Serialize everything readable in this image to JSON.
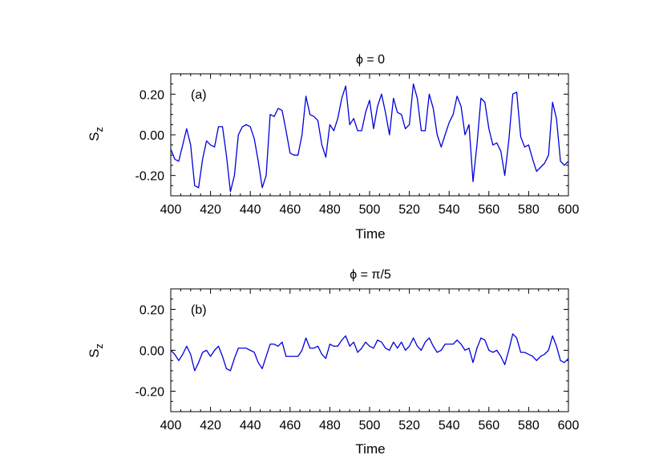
{
  "colors": {
    "series": "#0000dd",
    "axis": "#000000",
    "background": "#ffffff"
  },
  "chart_data": [
    {
      "type": "line",
      "title": "ϕ = 0",
      "panel_label": "(a)",
      "xlabel": "Time",
      "ylabel": "S",
      "ylabel_sub": "z",
      "xlim": [
        400,
        600
      ],
      "ylim": [
        -0.3,
        0.3
      ],
      "xticks": [
        400,
        420,
        440,
        460,
        480,
        500,
        520,
        540,
        560,
        580,
        600
      ],
      "xtick_labels": [
        "400",
        "420",
        "440",
        "460",
        "480",
        "500",
        "520",
        "540",
        "560",
        "580",
        "600"
      ],
      "yticks": [
        -0.2,
        0.0,
        0.2
      ],
      "ytick_labels": [
        "-0.20",
        "0.00",
        "0.20"
      ],
      "grid": false,
      "series": [
        {
          "x": [
            400,
            402,
            404,
            406,
            408,
            410,
            412,
            414,
            416,
            418,
            420,
            422,
            424,
            426,
            428,
            430,
            432,
            434,
            436,
            438,
            440,
            442,
            444,
            446,
            448,
            450,
            452,
            454,
            456,
            458,
            460,
            462,
            464,
            466,
            468,
            470,
            472,
            474,
            476,
            478,
            480,
            482,
            484,
            486,
            488,
            490,
            492,
            494,
            496,
            498,
            500,
            502,
            504,
            506,
            508,
            510,
            512,
            514,
            516,
            518,
            520,
            522,
            524,
            526,
            528,
            530,
            532,
            534,
            536,
            538,
            540,
            542,
            544,
            546,
            548,
            550,
            552,
            554,
            556,
            558,
            560,
            562,
            564,
            566,
            568,
            570,
            572,
            574,
            576,
            578,
            580,
            582,
            584,
            586,
            588,
            590,
            592,
            594,
            596,
            598,
            600
          ],
          "y": [
            -0.07,
            -0.12,
            -0.13,
            -0.05,
            0.03,
            -0.05,
            -0.25,
            -0.26,
            -0.12,
            -0.03,
            -0.05,
            -0.06,
            0.04,
            0.04,
            -0.1,
            -0.28,
            -0.2,
            0.0,
            0.04,
            0.05,
            0.04,
            -0.02,
            -0.13,
            -0.26,
            -0.2,
            0.1,
            0.09,
            0.13,
            0.12,
            0.02,
            -0.09,
            -0.1,
            -0.1,
            0.0,
            0.19,
            0.1,
            0.09,
            0.07,
            -0.05,
            -0.11,
            0.05,
            0.02,
            0.08,
            0.18,
            0.24,
            0.05,
            0.08,
            0.02,
            0.02,
            0.11,
            0.17,
            0.03,
            0.14,
            0.2,
            0.11,
            0.0,
            0.18,
            0.11,
            0.1,
            0.03,
            0.05,
            0.25,
            0.18,
            0.02,
            0.02,
            0.2,
            0.13,
            0.0,
            -0.06,
            0.0,
            0.06,
            0.1,
            0.19,
            0.14,
            0.0,
            0.05,
            -0.23,
            -0.05,
            0.18,
            0.16,
            0.03,
            -0.05,
            -0.04,
            -0.08,
            -0.2,
            -0.03,
            0.2,
            0.21,
            -0.01,
            -0.06,
            -0.05,
            -0.12,
            -0.18,
            -0.16,
            -0.14,
            -0.1,
            0.16,
            0.08,
            -0.13,
            -0.15,
            -0.13
          ]
        }
      ]
    },
    {
      "type": "line",
      "title": "ϕ = π/5",
      "panel_label": "(b)",
      "xlabel": "Time",
      "ylabel": "S",
      "ylabel_sub": "z",
      "xlim": [
        400,
        600
      ],
      "ylim": [
        -0.3,
        0.3
      ],
      "xticks": [
        400,
        420,
        440,
        460,
        480,
        500,
        520,
        540,
        560,
        580,
        600
      ],
      "xtick_labels": [
        "400",
        "420",
        "440",
        "460",
        "480",
        "500",
        "520",
        "540",
        "560",
        "580",
        "600"
      ],
      "yticks": [
        -0.2,
        0.0,
        0.2
      ],
      "ytick_labels": [
        "-0.20",
        "0.00",
        "0.20"
      ],
      "grid": false,
      "series": [
        {
          "x": [
            400,
            402,
            404,
            406,
            408,
            410,
            412,
            414,
            416,
            418,
            420,
            422,
            424,
            426,
            428,
            430,
            432,
            434,
            436,
            438,
            440,
            442,
            444,
            446,
            448,
            450,
            452,
            454,
            456,
            458,
            460,
            462,
            464,
            466,
            468,
            470,
            472,
            474,
            476,
            478,
            480,
            482,
            484,
            486,
            488,
            490,
            492,
            494,
            496,
            498,
            500,
            502,
            504,
            506,
            508,
            510,
            512,
            514,
            516,
            518,
            520,
            522,
            524,
            526,
            528,
            530,
            532,
            534,
            536,
            538,
            540,
            542,
            544,
            546,
            548,
            550,
            552,
            554,
            556,
            558,
            560,
            562,
            564,
            566,
            568,
            570,
            572,
            574,
            576,
            578,
            580,
            582,
            584,
            586,
            588,
            590,
            592,
            594,
            596,
            598,
            600
          ],
          "y": [
            0.0,
            -0.02,
            -0.05,
            -0.02,
            0.02,
            -0.02,
            -0.1,
            -0.06,
            -0.01,
            0.0,
            -0.03,
            0.0,
            0.02,
            -0.03,
            -0.09,
            -0.1,
            -0.04,
            0.01,
            0.01,
            0.01,
            0.0,
            -0.01,
            -0.06,
            -0.09,
            -0.03,
            0.03,
            0.03,
            0.02,
            0.04,
            -0.03,
            -0.03,
            -0.03,
            -0.03,
            0.0,
            0.06,
            0.01,
            0.01,
            0.02,
            -0.02,
            -0.04,
            0.03,
            0.02,
            0.02,
            0.05,
            0.07,
            0.02,
            0.04,
            -0.01,
            0.01,
            0.04,
            0.02,
            0.01,
            0.05,
            0.04,
            0.01,
            0.0,
            0.04,
            0.01,
            0.04,
            0.0,
            0.02,
            0.06,
            0.02,
            0.0,
            0.04,
            0.06,
            0.02,
            -0.01,
            0.0,
            0.03,
            0.03,
            0.03,
            0.05,
            0.03,
            0.0,
            0.01,
            -0.06,
            0.01,
            0.06,
            0.05,
            0.0,
            -0.01,
            0.0,
            -0.03,
            -0.07,
            0.0,
            0.08,
            0.06,
            -0.01,
            -0.01,
            -0.02,
            -0.03,
            -0.05,
            -0.03,
            -0.02,
            0.0,
            0.07,
            0.02,
            -0.05,
            -0.06,
            -0.04
          ]
        }
      ]
    }
  ]
}
